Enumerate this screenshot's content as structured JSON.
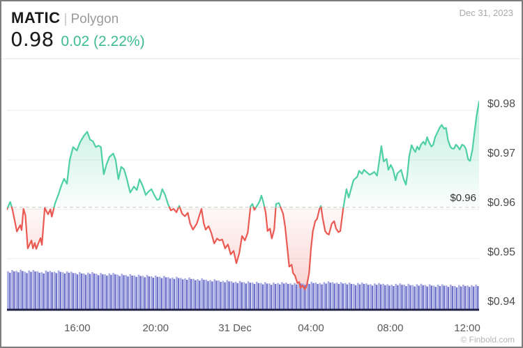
{
  "header": {
    "symbol": "MATIC",
    "separator": "|",
    "network": "Polygon",
    "date": "Dec 31, 2023",
    "price": "0.98",
    "change": "0.02 (2.22%)",
    "change_color": "#3fbb92"
  },
  "footer": {
    "watermark": "© Finbold.com"
  },
  "chart_data": {
    "type": "area",
    "title": "MATIC (Polygon) intraday price with volume",
    "ylim": [
      0.938,
      0.988
    ],
    "baseline_price": 0.96,
    "baseline_label": "$0.96",
    "grid": true,
    "y_ticks": [
      {
        "price": 0.98,
        "label": "$0.98"
      },
      {
        "price": 0.97,
        "label": "$0.97"
      },
      {
        "price": 0.96,
        "label": "$0.96"
      },
      {
        "price": 0.95,
        "label": "$0.95"
      },
      {
        "price": 0.94,
        "label": "$0.94"
      }
    ],
    "x_ticks": [
      {
        "f": 0.149,
        "label": "16:00"
      },
      {
        "f": 0.315,
        "label": "20:00"
      },
      {
        "f": 0.483,
        "label": "31 Dec"
      },
      {
        "f": 0.644,
        "label": "04:00"
      },
      {
        "f": 0.812,
        "label": "08:00"
      },
      {
        "f": 0.975,
        "label": "12:00"
      }
    ],
    "price_series": [
      [
        0.0,
        0.96
      ],
      [
        0.007,
        0.9615
      ],
      [
        0.012,
        0.9598
      ],
      [
        0.021,
        0.9555
      ],
      [
        0.028,
        0.9568
      ],
      [
        0.031,
        0.9558
      ],
      [
        0.035,
        0.9601
      ],
      [
        0.039,
        0.9588
      ],
      [
        0.044,
        0.9521
      ],
      [
        0.052,
        0.9537
      ],
      [
        0.055,
        0.9521
      ],
      [
        0.059,
        0.9532
      ],
      [
        0.062,
        0.952
      ],
      [
        0.066,
        0.953
      ],
      [
        0.071,
        0.9542
      ],
      [
        0.074,
        0.9528
      ],
      [
        0.08,
        0.9603
      ],
      [
        0.087,
        0.959
      ],
      [
        0.092,
        0.96
      ],
      [
        0.095,
        0.9585
      ],
      [
        0.102,
        0.9613
      ],
      [
        0.109,
        0.963
      ],
      [
        0.115,
        0.9648
      ],
      [
        0.121,
        0.9662
      ],
      [
        0.127,
        0.9652
      ],
      [
        0.133,
        0.97
      ],
      [
        0.14,
        0.9726
      ],
      [
        0.148,
        0.9719
      ],
      [
        0.155,
        0.9736
      ],
      [
        0.163,
        0.9749
      ],
      [
        0.17,
        0.9757
      ],
      [
        0.176,
        0.9741
      ],
      [
        0.182,
        0.9738
      ],
      [
        0.188,
        0.9726
      ],
      [
        0.194,
        0.9729
      ],
      [
        0.199,
        0.9726
      ],
      [
        0.205,
        0.9671
      ],
      [
        0.211,
        0.9691
      ],
      [
        0.217,
        0.9706
      ],
      [
        0.225,
        0.9713
      ],
      [
        0.23,
        0.9701
      ],
      [
        0.236,
        0.9661
      ],
      [
        0.242,
        0.9686
      ],
      [
        0.248,
        0.9681
      ],
      [
        0.254,
        0.9661
      ],
      [
        0.261,
        0.9634
      ],
      [
        0.269,
        0.9646
      ],
      [
        0.275,
        0.9639
      ],
      [
        0.281,
        0.9661
      ],
      [
        0.288,
        0.9646
      ],
      [
        0.294,
        0.9629
      ],
      [
        0.3,
        0.9636
      ],
      [
        0.306,
        0.9641
      ],
      [
        0.312,
        0.9629
      ],
      [
        0.318,
        0.9619
      ],
      [
        0.323,
        0.9621
      ],
      [
        0.329,
        0.9641
      ],
      [
        0.335,
        0.9629
      ],
      [
        0.341,
        0.9611
      ],
      [
        0.347,
        0.9598
      ],
      [
        0.353,
        0.9601
      ],
      [
        0.359,
        0.9594
      ],
      [
        0.365,
        0.9607
      ],
      [
        0.371,
        0.9591
      ],
      [
        0.377,
        0.9586
      ],
      [
        0.383,
        0.9593
      ],
      [
        0.388,
        0.9571
      ],
      [
        0.394,
        0.9559
      ],
      [
        0.402,
        0.9571
      ],
      [
        0.408,
        0.9589
      ],
      [
        0.412,
        0.9601
      ],
      [
        0.417,
        0.9571
      ],
      [
        0.421,
        0.9559
      ],
      [
        0.427,
        0.9566
      ],
      [
        0.433,
        0.9552
      ],
      [
        0.439,
        0.9531
      ],
      [
        0.445,
        0.9541
      ],
      [
        0.45,
        0.9537
      ],
      [
        0.456,
        0.9539
      ],
      [
        0.462,
        0.9521
      ],
      [
        0.468,
        0.9529
      ],
      [
        0.474,
        0.9509
      ],
      [
        0.48,
        0.9516
      ],
      [
        0.486,
        0.9491
      ],
      [
        0.492,
        0.9511
      ],
      [
        0.498,
        0.9546
      ],
      [
        0.504,
        0.9537
      ],
      [
        0.51,
        0.9553
      ],
      [
        0.516,
        0.9606
      ],
      [
        0.52,
        0.9611
      ],
      [
        0.524,
        0.9599
      ],
      [
        0.529,
        0.9606
      ],
      [
        0.535,
        0.9616
      ],
      [
        0.539,
        0.9628
      ],
      [
        0.544,
        0.9611
      ],
      [
        0.548,
        0.9593
      ],
      [
        0.552,
        0.9556
      ],
      [
        0.557,
        0.9561
      ],
      [
        0.561,
        0.9541
      ],
      [
        0.566,
        0.9559
      ],
      [
        0.57,
        0.9611
      ],
      [
        0.576,
        0.9613
      ],
      [
        0.581,
        0.9601
      ],
      [
        0.585,
        0.9591
      ],
      [
        0.589,
        0.9566
      ],
      [
        0.594,
        0.9521
      ],
      [
        0.598,
        0.9484
      ],
      [
        0.603,
        0.9488
      ],
      [
        0.606,
        0.9471
      ],
      [
        0.61,
        0.9466
      ],
      [
        0.615,
        0.9451
      ],
      [
        0.619,
        0.9453
      ],
      [
        0.622,
        0.9441
      ],
      [
        0.626,
        0.9446
      ],
      [
        0.631,
        0.9438
      ],
      [
        0.635,
        0.9446
      ],
      [
        0.64,
        0.9471
      ],
      [
        0.644,
        0.9521
      ],
      [
        0.648,
        0.9556
      ],
      [
        0.653,
        0.9576
      ],
      [
        0.657,
        0.9581
      ],
      [
        0.662,
        0.9601
      ],
      [
        0.665,
        0.9607
      ],
      [
        0.669,
        0.9581
      ],
      [
        0.674,
        0.9556
      ],
      [
        0.678,
        0.9551
      ],
      [
        0.682,
        0.9549
      ],
      [
        0.688,
        0.9571
      ],
      [
        0.693,
        0.9576
      ],
      [
        0.697,
        0.9561
      ],
      [
        0.702,
        0.9554
      ],
      [
        0.706,
        0.9556
      ],
      [
        0.712,
        0.96
      ],
      [
        0.719,
        0.9641
      ],
      [
        0.724,
        0.9624
      ],
      [
        0.73,
        0.9645
      ],
      [
        0.734,
        0.9659
      ],
      [
        0.742,
        0.9666
      ],
      [
        0.746,
        0.9678
      ],
      [
        0.752,
        0.9672
      ],
      [
        0.756,
        0.968
      ],
      [
        0.762,
        0.9675
      ],
      [
        0.768,
        0.967
      ],
      [
        0.774,
        0.9673
      ],
      [
        0.778,
        0.9676
      ],
      [
        0.784,
        0.9668
      ],
      [
        0.793,
        0.9728
      ],
      [
        0.798,
        0.9697
      ],
      [
        0.804,
        0.9702
      ],
      [
        0.808,
        0.968
      ],
      [
        0.813,
        0.969
      ],
      [
        0.818,
        0.968
      ],
      [
        0.823,
        0.9659
      ],
      [
        0.827,
        0.9673
      ],
      [
        0.835,
        0.968
      ],
      [
        0.84,
        0.9662
      ],
      [
        0.845,
        0.965
      ],
      [
        0.848,
        0.967
      ],
      [
        0.852,
        0.9707
      ],
      [
        0.857,
        0.973
      ],
      [
        0.861,
        0.9722
      ],
      [
        0.865,
        0.9716
      ],
      [
        0.869,
        0.9727
      ],
      [
        0.873,
        0.9721
      ],
      [
        0.877,
        0.9731
      ],
      [
        0.882,
        0.9737
      ],
      [
        0.886,
        0.9731
      ],
      [
        0.89,
        0.9746
      ],
      [
        0.894,
        0.9736
      ],
      [
        0.899,
        0.9727
      ],
      [
        0.903,
        0.9731
      ],
      [
        0.907,
        0.9746
      ],
      [
        0.912,
        0.9756
      ],
      [
        0.917,
        0.9766
      ],
      [
        0.921,
        0.9771
      ],
      [
        0.926,
        0.9763
      ],
      [
        0.93,
        0.9765
      ],
      [
        0.934,
        0.9741
      ],
      [
        0.939,
        0.9727
      ],
      [
        0.943,
        0.9723
      ],
      [
        0.947,
        0.9723
      ],
      [
        0.951,
        0.9731
      ],
      [
        0.955,
        0.9727
      ],
      [
        0.959,
        0.9721
      ],
      [
        0.964,
        0.9731
      ],
      [
        0.968,
        0.9729
      ],
      [
        0.972,
        0.9723
      ],
      [
        0.977,
        0.9701
      ],
      [
        0.981,
        0.9698
      ],
      [
        0.986,
        0.9721
      ],
      [
        0.991,
        0.9761
      ],
      [
        0.995,
        0.9791
      ],
      [
        1.0,
        0.9818
      ]
    ],
    "volume_series": [
      0.92,
      0.95,
      0.93,
      0.96,
      0.91,
      0.94,
      0.95,
      0.92,
      0.9,
      0.94,
      0.93,
      0.91,
      0.94,
      0.9,
      0.92,
      0.91,
      0.88,
      0.9,
      0.87,
      0.89,
      0.9,
      0.86,
      0.88,
      0.85,
      0.87,
      0.88,
      0.84,
      0.86,
      0.83,
      0.85,
      0.82,
      0.84,
      0.81,
      0.83,
      0.8,
      0.82,
      0.79,
      0.81,
      0.78,
      0.77,
      0.79,
      0.76,
      0.75,
      0.77,
      0.74,
      0.73,
      0.75,
      0.72,
      0.71,
      0.73,
      0.7,
      0.69,
      0.71,
      0.68,
      0.67,
      0.69,
      0.66,
      0.68,
      0.65,
      0.67,
      0.64,
      0.66,
      0.63,
      0.65,
      0.64,
      0.66,
      0.65,
      0.63,
      0.64,
      0.66,
      0.63,
      0.65,
      0.67,
      0.65,
      0.64,
      0.66,
      0.68,
      0.66,
      0.65,
      0.66,
      0.64,
      0.65,
      0.62,
      0.64,
      0.65,
      0.63,
      0.61,
      0.63,
      0.64,
      0.62,
      0.61,
      0.6,
      0.62,
      0.63,
      0.6,
      0.62,
      0.59,
      0.61,
      0.62,
      0.59,
      0.61,
      0.58,
      0.6,
      0.61,
      0.58,
      0.6,
      0.57,
      0.59,
      0.6,
      0.58,
      0.59,
      0.6
    ],
    "colors": {
      "up": "#4fd0a2",
      "down": "#ea5a52",
      "grid": "#ececec",
      "baseline_dash": "#d6d6d6",
      "volume_light": "#a9ace2",
      "volume_dark": "#6f73ca",
      "volume_axis": "#1f2147",
      "change_text": "#3fbb92"
    }
  }
}
